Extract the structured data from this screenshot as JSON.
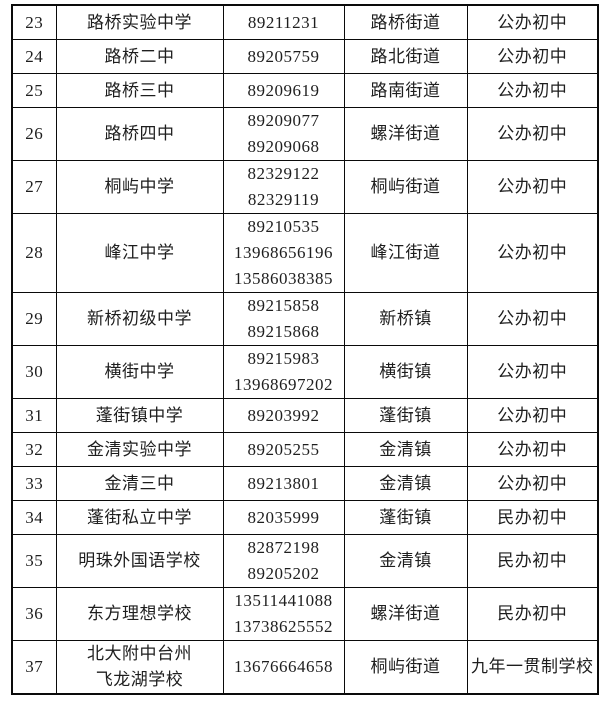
{
  "colors": {
    "background": "#ffffff",
    "border": "#0a0a0a",
    "text": "#1e1e1e"
  },
  "table": {
    "rows": [
      {
        "no": "23",
        "name": [
          "路桥实验中学"
        ],
        "phones": [
          "89211231"
        ],
        "location": "路桥街道",
        "type": "公办初中"
      },
      {
        "no": "24",
        "name": [
          "路桥二中"
        ],
        "phones": [
          "89205759"
        ],
        "location": "路北街道",
        "type": "公办初中"
      },
      {
        "no": "25",
        "name": [
          "路桥三中"
        ],
        "phones": [
          "89209619"
        ],
        "location": "路南街道",
        "type": "公办初中"
      },
      {
        "no": "26",
        "name": [
          "路桥四中"
        ],
        "phones": [
          "89209077",
          "89209068"
        ],
        "location": "螺洋街道",
        "type": "公办初中"
      },
      {
        "no": "27",
        "name": [
          "桐屿中学"
        ],
        "phones": [
          "82329122",
          "82329119"
        ],
        "location": "桐屿街道",
        "type": "公办初中"
      },
      {
        "no": "28",
        "name": [
          "峰江中学"
        ],
        "phones": [
          "89210535",
          "13968656196",
          "13586038385"
        ],
        "location": "峰江街道",
        "type": "公办初中"
      },
      {
        "no": "29",
        "name": [
          "新桥初级中学"
        ],
        "phones": [
          "89215858",
          "89215868"
        ],
        "location": "新桥镇",
        "type": "公办初中"
      },
      {
        "no": "30",
        "name": [
          "横街中学"
        ],
        "phones": [
          "89215983",
          "13968697202"
        ],
        "location": "横街镇",
        "type": "公办初中"
      },
      {
        "no": "31",
        "name": [
          "蓬街镇中学"
        ],
        "phones": [
          "89203992"
        ],
        "location": "蓬街镇",
        "type": "公办初中"
      },
      {
        "no": "32",
        "name": [
          "金清实验中学"
        ],
        "phones": [
          "89205255"
        ],
        "location": "金清镇",
        "type": "公办初中"
      },
      {
        "no": "33",
        "name": [
          "金清三中"
        ],
        "phones": [
          "89213801"
        ],
        "location": "金清镇",
        "type": "公办初中"
      },
      {
        "no": "34",
        "name": [
          "蓬街私立中学"
        ],
        "phones": [
          "82035999"
        ],
        "location": "蓬街镇",
        "type": "民办初中"
      },
      {
        "no": "35",
        "name": [
          "明珠外国语学校"
        ],
        "phones": [
          "82872198",
          "89205202"
        ],
        "location": "金清镇",
        "type": "民办初中"
      },
      {
        "no": "36",
        "name": [
          "东方理想学校"
        ],
        "phones": [
          "13511441088",
          "13738625552"
        ],
        "location": "螺洋街道",
        "type": "民办初中"
      },
      {
        "no": "37",
        "name": [
          "北大附中台州",
          "飞龙湖学校"
        ],
        "phones": [
          "13676664658"
        ],
        "location": "桐屿街道",
        "type": "九年一贯制学校"
      }
    ]
  }
}
